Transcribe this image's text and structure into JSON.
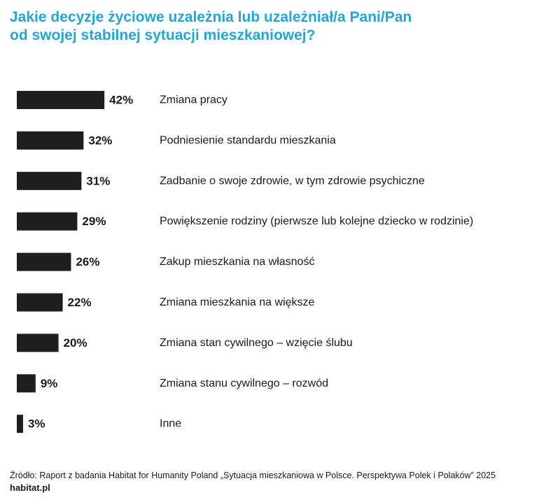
{
  "title": {
    "line1": "Jakie decyzje życiowe uzależnia lub uzależniał/a Pani/Pan",
    "line2": "od swojej stabilnej sytuacji mieszkaniowej?"
  },
  "colors": {
    "title": "#1ea7d8",
    "bar": "#1e1e1e",
    "text": "#1a1a1a"
  },
  "chart_data": {
    "type": "bar",
    "orientation": "horizontal",
    "categories": [
      "Zmiana pracy",
      "Podniesienie standardu mieszkania",
      "Zadbanie o swoje zdrowie, w tym zdrowie psychiczne",
      "Powiększenie rodziny (pierwsze lub kolejne dziecko w rodzinie)",
      "Zakup mieszkania na własność",
      "Zmiana mieszkania na większe",
      "Zmiana stan cywilnego – wzięcie ślubu",
      "Zmiana stanu cywilnego – rozwód",
      "Inne"
    ],
    "values": [
      42,
      32,
      31,
      29,
      26,
      22,
      20,
      9,
      3
    ],
    "value_labels": [
      "42%",
      "32%",
      "31%",
      "29%",
      "26%",
      "22%",
      "20%",
      "9%",
      "3%"
    ],
    "unit": "%",
    "xlim": [
      0,
      100
    ],
    "grid": false,
    "legend": "none"
  },
  "footer": {
    "source": "Źródło: Raport z badania Habitat for Humanity Poland „Sytuacja mieszkaniowa w Polsce. Perspektywa Polek i Polaków” 2025",
    "brand": "habitat.pl"
  }
}
